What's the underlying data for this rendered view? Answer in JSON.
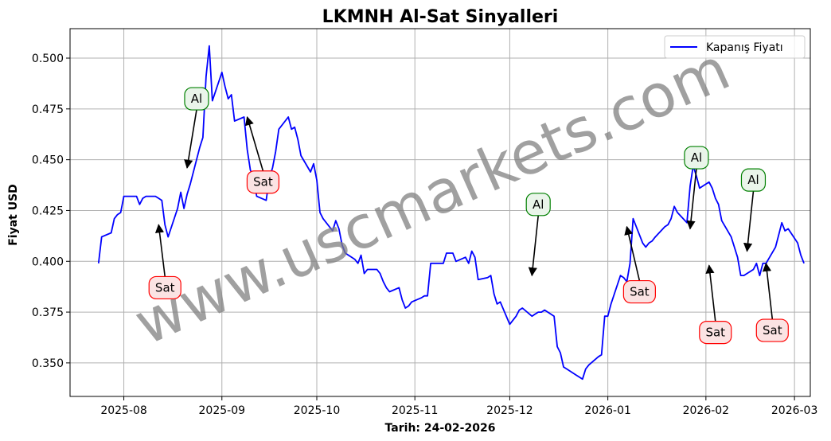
{
  "chart_data": {
    "type": "line",
    "title": "LKMNH Al-Sat Sinyalleri",
    "xlabel": "Tarih: 24-02-2026",
    "ylabel": "Fiyat USD",
    "xlim": [
      "2025-07-15",
      "2026-03-06"
    ],
    "ylim": [
      0.3335,
      0.5145
    ],
    "grid": true,
    "legend_position": "upper right",
    "x_ticks": [
      "2025-08",
      "2025-09",
      "2025-10",
      "2025-11",
      "2025-12",
      "2026-01",
      "2026-02",
      "2026-03"
    ],
    "y_ticks": [
      0.35,
      0.375,
      0.4,
      0.425,
      0.45,
      0.475,
      0.5
    ],
    "y_tick_labels": [
      "0.350",
      "0.375",
      "0.400",
      "0.425",
      "0.450",
      "0.475",
      "0.500"
    ],
    "series": [
      {
        "name": "Kapanış Fiyatı",
        "color": "#0000ff",
        "points": [
          [
            "2025-07-24",
            0.399
          ],
          [
            "2025-07-25",
            0.412
          ],
          [
            "2025-07-28",
            0.414
          ],
          [
            "2025-07-29",
            0.421
          ],
          [
            "2025-07-30",
            0.423
          ],
          [
            "2025-07-31",
            0.424
          ],
          [
            "2025-08-01",
            0.432
          ],
          [
            "2025-08-04",
            0.432
          ],
          [
            "2025-08-05",
            0.432
          ],
          [
            "2025-08-06",
            0.428
          ],
          [
            "2025-08-07",
            0.431
          ],
          [
            "2025-08-08",
            0.432
          ],
          [
            "2025-08-11",
            0.432
          ],
          [
            "2025-08-12",
            0.431
          ],
          [
            "2025-08-13",
            0.43
          ],
          [
            "2025-08-14",
            0.418
          ],
          [
            "2025-08-15",
            0.412
          ],
          [
            "2025-08-18",
            0.426
          ],
          [
            "2025-08-19",
            0.434
          ],
          [
            "2025-08-20",
            0.426
          ],
          [
            "2025-08-21",
            0.433
          ],
          [
            "2025-08-22",
            0.438
          ],
          [
            "2025-08-25",
            0.456
          ],
          [
            "2025-08-26",
            0.461
          ],
          [
            "2025-08-27",
            0.491
          ],
          [
            "2025-08-28",
            0.506
          ],
          [
            "2025-08-29",
            0.479
          ],
          [
            "2025-09-01",
            0.493
          ],
          [
            "2025-09-02",
            0.486
          ],
          [
            "2025-09-03",
            0.48
          ],
          [
            "2025-09-04",
            0.482
          ],
          [
            "2025-09-05",
            0.469
          ],
          [
            "2025-09-08",
            0.471
          ],
          [
            "2025-09-09",
            0.455
          ],
          [
            "2025-09-10",
            0.445
          ],
          [
            "2025-09-11",
            0.441
          ],
          [
            "2025-09-12",
            0.432
          ],
          [
            "2025-09-15",
            0.43
          ],
          [
            "2025-09-16",
            0.441
          ],
          [
            "2025-09-17",
            0.446
          ],
          [
            "2025-09-18",
            0.454
          ],
          [
            "2025-09-19",
            0.465
          ],
          [
            "2025-09-22",
            0.471
          ],
          [
            "2025-09-23",
            0.465
          ],
          [
            "2025-09-24",
            0.466
          ],
          [
            "2025-09-25",
            0.46
          ],
          [
            "2025-09-26",
            0.452
          ],
          [
            "2025-09-29",
            0.444
          ],
          [
            "2025-09-30",
            0.448
          ],
          [
            "2025-10-01",
            0.44
          ],
          [
            "2025-10-02",
            0.424
          ],
          [
            "2025-10-03",
            0.421
          ],
          [
            "2025-10-06",
            0.415
          ],
          [
            "2025-10-07",
            0.42
          ],
          [
            "2025-10-08",
            0.416
          ],
          [
            "2025-10-09",
            0.408
          ],
          [
            "2025-10-10",
            0.404
          ],
          [
            "2025-10-13",
            0.401
          ],
          [
            "2025-10-14",
            0.399
          ],
          [
            "2025-10-15",
            0.403
          ],
          [
            "2025-10-16",
            0.394
          ],
          [
            "2025-10-17",
            0.396
          ],
          [
            "2025-10-20",
            0.396
          ],
          [
            "2025-10-21",
            0.394
          ],
          [
            "2025-10-22",
            0.39
          ],
          [
            "2025-10-23",
            0.387
          ],
          [
            "2025-10-24",
            0.385
          ],
          [
            "2025-10-27",
            0.387
          ],
          [
            "2025-10-28",
            0.381
          ],
          [
            "2025-10-29",
            0.377
          ],
          [
            "2025-10-30",
            0.378
          ],
          [
            "2025-10-31",
            0.38
          ],
          [
            "2025-11-03",
            0.382
          ],
          [
            "2025-11-04",
            0.383
          ],
          [
            "2025-11-05",
            0.383
          ],
          [
            "2025-11-06",
            0.399
          ],
          [
            "2025-11-07",
            0.399
          ],
          [
            "2025-11-10",
            0.399
          ],
          [
            "2025-11-11",
            0.404
          ],
          [
            "2025-11-12",
            0.404
          ],
          [
            "2025-11-13",
            0.404
          ],
          [
            "2025-11-14",
            0.4
          ],
          [
            "2025-11-17",
            0.402
          ],
          [
            "2025-11-18",
            0.399
          ],
          [
            "2025-11-19",
            0.405
          ],
          [
            "2025-11-20",
            0.402
          ],
          [
            "2025-11-21",
            0.391
          ],
          [
            "2025-11-24",
            0.392
          ],
          [
            "2025-11-25",
            0.393
          ],
          [
            "2025-11-26",
            0.384
          ],
          [
            "2025-11-27",
            0.379
          ],
          [
            "2025-11-28",
            0.38
          ],
          [
            "2025-12-01",
            0.369
          ],
          [
            "2025-12-02",
            0.371
          ],
          [
            "2025-12-03",
            0.373
          ],
          [
            "2025-12-04",
            0.376
          ],
          [
            "2025-12-05",
            0.377
          ],
          [
            "2025-12-08",
            0.373
          ],
          [
            "2025-12-09",
            0.374
          ],
          [
            "2025-12-10",
            0.375
          ],
          [
            "2025-12-11",
            0.375
          ],
          [
            "2025-12-12",
            0.376
          ],
          [
            "2025-12-15",
            0.373
          ],
          [
            "2025-12-16",
            0.358
          ],
          [
            "2025-12-17",
            0.355
          ],
          [
            "2025-12-18",
            0.348
          ],
          [
            "2025-12-19",
            0.347
          ],
          [
            "2025-12-22",
            0.344
          ],
          [
            "2025-12-23",
            0.343
          ],
          [
            "2025-12-24",
            0.342
          ],
          [
            "2025-12-25",
            0.347
          ],
          [
            "2025-12-26",
            0.349
          ],
          [
            "2025-12-29",
            0.353
          ],
          [
            "2025-12-30",
            0.354
          ],
          [
            "2025-12-31",
            0.373
          ],
          [
            "2026-01-01",
            0.373
          ],
          [
            "2026-01-02",
            0.379
          ],
          [
            "2026-01-05",
            0.393
          ],
          [
            "2026-01-06",
            0.392
          ],
          [
            "2026-01-07",
            0.39
          ],
          [
            "2026-01-08",
            0.399
          ],
          [
            "2026-01-09",
            0.421
          ],
          [
            "2026-01-12",
            0.409
          ],
          [
            "2026-01-13",
            0.407
          ],
          [
            "2026-01-14",
            0.409
          ],
          [
            "2026-01-15",
            0.41
          ],
          [
            "2026-01-16",
            0.412
          ],
          [
            "2026-01-19",
            0.417
          ],
          [
            "2026-01-20",
            0.418
          ],
          [
            "2026-01-21",
            0.421
          ],
          [
            "2026-01-22",
            0.427
          ],
          [
            "2026-01-23",
            0.424
          ],
          [
            "2026-01-26",
            0.419
          ],
          [
            "2026-01-27",
            0.437
          ],
          [
            "2026-01-28",
            0.447
          ],
          [
            "2026-01-29",
            0.442
          ],
          [
            "2026-01-30",
            0.436
          ],
          [
            "2026-02-02",
            0.439
          ],
          [
            "2026-02-03",
            0.436
          ],
          [
            "2026-02-04",
            0.431
          ],
          [
            "2026-02-05",
            0.428
          ],
          [
            "2026-02-06",
            0.42
          ],
          [
            "2026-02-09",
            0.412
          ],
          [
            "2026-02-10",
            0.407
          ],
          [
            "2026-02-11",
            0.402
          ],
          [
            "2026-02-12",
            0.393
          ],
          [
            "2026-02-13",
            0.393
          ],
          [
            "2026-02-16",
            0.396
          ],
          [
            "2026-02-17",
            0.399
          ],
          [
            "2026-02-18",
            0.393
          ],
          [
            "2026-02-19",
            0.399
          ],
          [
            "2026-02-20",
            0.399
          ],
          [
            "2026-02-23",
            0.407
          ],
          [
            "2026-02-24",
            0.413
          ],
          [
            "2026-02-25",
            0.419
          ],
          [
            "2026-02-26",
            0.415
          ],
          [
            "2026-02-27",
            0.416
          ],
          [
            "2026-03-02",
            0.409
          ],
          [
            "2026-03-03",
            0.403
          ],
          [
            "2026-03-04",
            0.399
          ]
        ]
      }
    ],
    "annotations": [
      {
        "text": "Al",
        "kind": "buy",
        "target": [
          "2025-08-21",
          0.446
        ],
        "label_at": [
          "2025-08-24",
          0.48
        ]
      },
      {
        "text": "Sat",
        "kind": "sell",
        "target": [
          "2025-08-12",
          0.418
        ],
        "label_at": [
          "2025-08-14",
          0.387
        ]
      },
      {
        "text": "Sat",
        "kind": "sell",
        "target": [
          "2025-09-09",
          0.471
        ],
        "label_at": [
          "2025-09-14",
          0.439
        ]
      },
      {
        "text": "Al",
        "kind": "buy",
        "target": [
          "2025-12-08",
          0.393
        ],
        "label_at": [
          "2025-12-10",
          0.428
        ]
      },
      {
        "text": "Sat",
        "kind": "sell",
        "target": [
          "2026-01-07",
          0.417
        ],
        "label_at": [
          "2026-01-11",
          0.385
        ]
      },
      {
        "text": "Al",
        "kind": "buy",
        "target": [
          "2026-01-27",
          0.416
        ],
        "label_at": [
          "2026-01-29",
          0.451
        ]
      },
      {
        "text": "Sat",
        "kind": "sell",
        "target": [
          "2026-02-02",
          0.398
        ],
        "label_at": [
          "2026-02-04",
          0.365
        ]
      },
      {
        "text": "Al",
        "kind": "buy",
        "target": [
          "2026-02-14",
          0.405
        ],
        "label_at": [
          "2026-02-16",
          0.44
        ]
      },
      {
        "text": "Sat",
        "kind": "sell",
        "target": [
          "2026-02-20",
          0.399
        ],
        "label_at": [
          "2026-02-22",
          0.366
        ]
      }
    ],
    "watermark": "www.uscmarkets.com",
    "colors": {
      "line": "#0000ff",
      "grid": "#b0b0b0",
      "buy_border": "#008000",
      "buy_fill": "#eaf5ea",
      "sell_border": "#ff0000",
      "sell_fill": "#fbe3e3",
      "watermark": "#808080"
    }
  }
}
